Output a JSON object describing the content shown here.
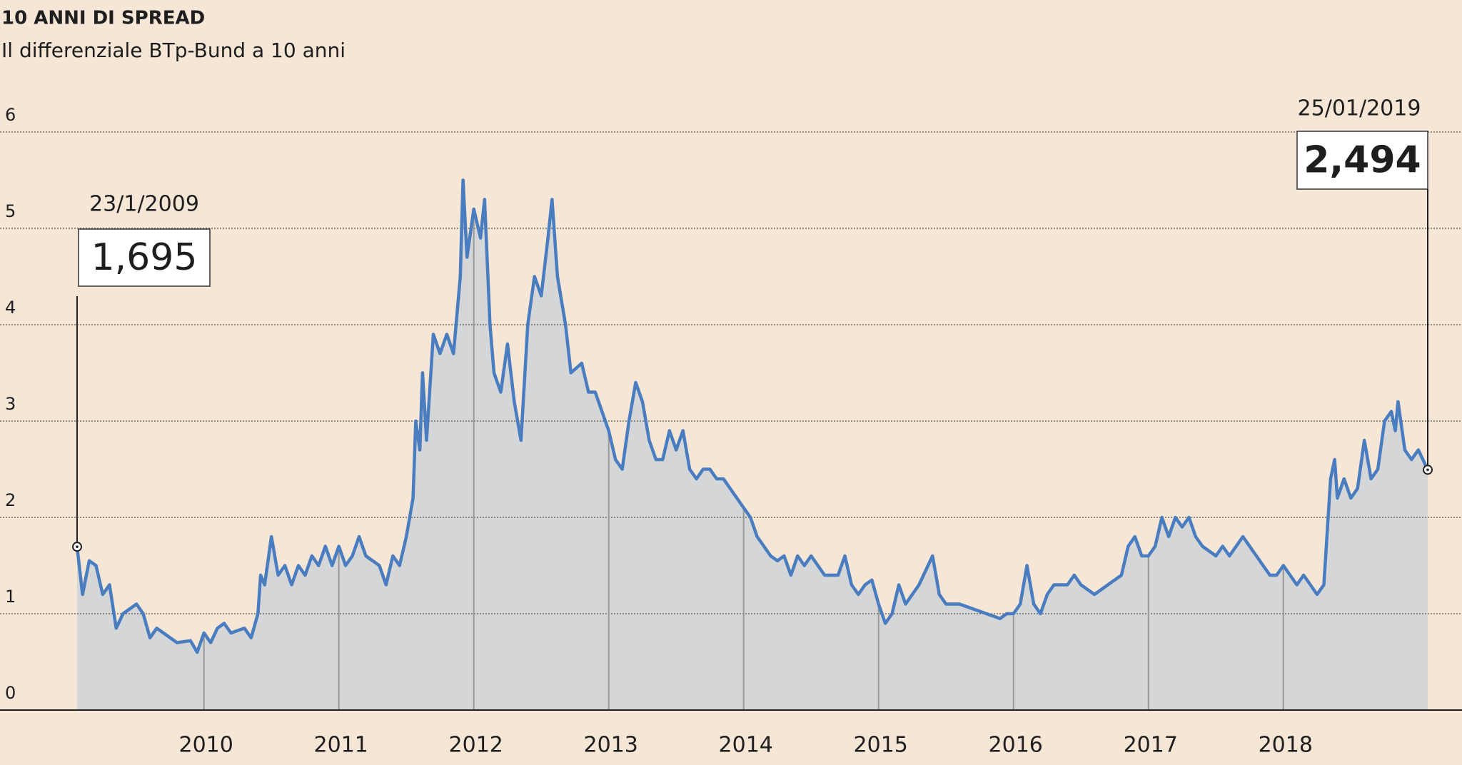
{
  "chart_data": {
    "type": "area",
    "title": "10 ANNI DI SPREAD",
    "subtitle": "Il differenziale BTp-Bund a 10 anni",
    "color": "#4a7cc0",
    "fill": "#d5d6d7",
    "grid": true,
    "xlim": [
      2009.06,
      2019.07
    ],
    "ylim": [
      0,
      6
    ],
    "xticks": [
      2010,
      2011,
      2012,
      2013,
      2014,
      2015,
      2016,
      2017,
      2018
    ],
    "yticks": [
      0,
      1,
      2,
      3,
      4,
      5,
      6
    ],
    "x": [
      2009.06,
      2009.1,
      2009.15,
      2009.2,
      2009.25,
      2009.3,
      2009.35,
      2009.4,
      2009.5,
      2009.55,
      2009.6,
      2009.65,
      2009.7,
      2009.8,
      2009.9,
      2009.95,
      2010.0,
      2010.05,
      2010.1,
      2010.15,
      2010.2,
      2010.3,
      2010.35,
      2010.4,
      2010.42,
      2010.45,
      2010.5,
      2010.55,
      2010.6,
      2010.65,
      2010.7,
      2010.75,
      2010.8,
      2010.85,
      2010.9,
      2010.95,
      2011.0,
      2011.05,
      2011.1,
      2011.15,
      2011.2,
      2011.3,
      2011.35,
      2011.4,
      2011.45,
      2011.5,
      2011.55,
      2011.57,
      2011.6,
      2011.62,
      2011.65,
      2011.7,
      2011.75,
      2011.8,
      2011.85,
      2011.9,
      2011.92,
      2011.95,
      2012.0,
      2012.05,
      2012.08,
      2012.12,
      2012.15,
      2012.2,
      2012.25,
      2012.3,
      2012.35,
      2012.4,
      2012.45,
      2012.5,
      2012.55,
      2012.58,
      2012.62,
      2012.68,
      2012.72,
      2012.8,
      2012.85,
      2012.9,
      2013.0,
      2013.05,
      2013.1,
      2013.15,
      2013.2,
      2013.25,
      2013.3,
      2013.35,
      2013.4,
      2013.45,
      2013.5,
      2013.55,
      2013.6,
      2013.65,
      2013.7,
      2013.75,
      2013.8,
      2013.85,
      2013.9,
      2014.0,
      2014.05,
      2014.1,
      2014.15,
      2014.2,
      2014.25,
      2014.3,
      2014.35,
      2014.4,
      2014.45,
      2014.5,
      2014.55,
      2014.6,
      2014.7,
      2014.75,
      2014.8,
      2014.85,
      2014.9,
      2014.95,
      2015.0,
      2015.05,
      2015.1,
      2015.15,
      2015.2,
      2015.3,
      2015.4,
      2015.45,
      2015.5,
      2015.6,
      2015.7,
      2015.8,
      2015.9,
      2015.95,
      2016.0,
      2016.05,
      2016.1,
      2016.15,
      2016.2,
      2016.25,
      2016.3,
      2016.4,
      2016.45,
      2016.5,
      2016.6,
      2016.7,
      2016.8,
      2016.85,
      2016.9,
      2016.95,
      2017.0,
      2017.05,
      2017.1,
      2017.15,
      2017.2,
      2017.25,
      2017.3,
      2017.35,
      2017.4,
      2017.5,
      2017.55,
      2017.6,
      2017.7,
      2017.75,
      2017.8,
      2017.85,
      2017.9,
      2017.95,
      2018.0,
      2018.05,
      2018.1,
      2018.15,
      2018.2,
      2018.25,
      2018.3,
      2018.35,
      2018.38,
      2018.4,
      2018.45,
      2018.5,
      2018.55,
      2018.6,
      2018.65,
      2018.7,
      2018.75,
      2018.8,
      2018.83,
      2018.85,
      2018.9,
      2018.95,
      2019.0,
      2019.07
    ],
    "values": [
      1.695,
      1.2,
      1.55,
      1.5,
      1.2,
      1.3,
      0.85,
      1.0,
      1.1,
      1.0,
      0.75,
      0.85,
      0.8,
      0.7,
      0.72,
      0.6,
      0.8,
      0.7,
      0.85,
      0.9,
      0.8,
      0.85,
      0.75,
      1.0,
      1.4,
      1.3,
      1.8,
      1.4,
      1.5,
      1.3,
      1.5,
      1.4,
      1.6,
      1.5,
      1.7,
      1.5,
      1.7,
      1.5,
      1.6,
      1.8,
      1.6,
      1.5,
      1.3,
      1.6,
      1.5,
      1.8,
      2.2,
      3.0,
      2.7,
      3.5,
      2.8,
      3.9,
      3.7,
      3.9,
      3.7,
      4.5,
      5.5,
      4.7,
      5.2,
      4.9,
      5.3,
      4.0,
      3.5,
      3.3,
      3.8,
      3.2,
      2.8,
      4.0,
      4.5,
      4.3,
      4.9,
      5.3,
      4.5,
      4.0,
      3.5,
      3.6,
      3.3,
      3.3,
      2.9,
      2.6,
      2.5,
      3.0,
      3.4,
      3.2,
      2.8,
      2.6,
      2.6,
      2.9,
      2.7,
      2.9,
      2.5,
      2.4,
      2.5,
      2.5,
      2.4,
      2.4,
      2.3,
      2.1,
      2.0,
      1.8,
      1.7,
      1.6,
      1.55,
      1.6,
      1.4,
      1.6,
      1.5,
      1.6,
      1.5,
      1.4,
      1.4,
      1.6,
      1.3,
      1.2,
      1.3,
      1.35,
      1.1,
      0.9,
      1.0,
      1.3,
      1.1,
      1.3,
      1.6,
      1.2,
      1.1,
      1.1,
      1.05,
      1.0,
      0.95,
      1.0,
      1.0,
      1.1,
      1.5,
      1.1,
      1.0,
      1.2,
      1.3,
      1.3,
      1.4,
      1.3,
      1.2,
      1.3,
      1.4,
      1.7,
      1.8,
      1.6,
      1.6,
      1.7,
      2.0,
      1.8,
      2.0,
      1.9,
      2.0,
      1.8,
      1.7,
      1.6,
      1.7,
      1.6,
      1.8,
      1.7,
      1.6,
      1.5,
      1.4,
      1.4,
      1.5,
      1.4,
      1.3,
      1.4,
      1.3,
      1.2,
      1.3,
      2.4,
      2.6,
      2.2,
      2.4,
      2.2,
      2.3,
      2.8,
      2.4,
      2.5,
      3.0,
      3.1,
      2.9,
      3.2,
      2.7,
      2.6,
      2.7,
      2.494
    ],
    "annotations": [
      {
        "date": "23/1/2009",
        "label": "1,695",
        "color": "#1e1e1e"
      },
      {
        "date": "25/01/2019",
        "label": "2,494",
        "color": "#1a7cc1"
      }
    ]
  }
}
